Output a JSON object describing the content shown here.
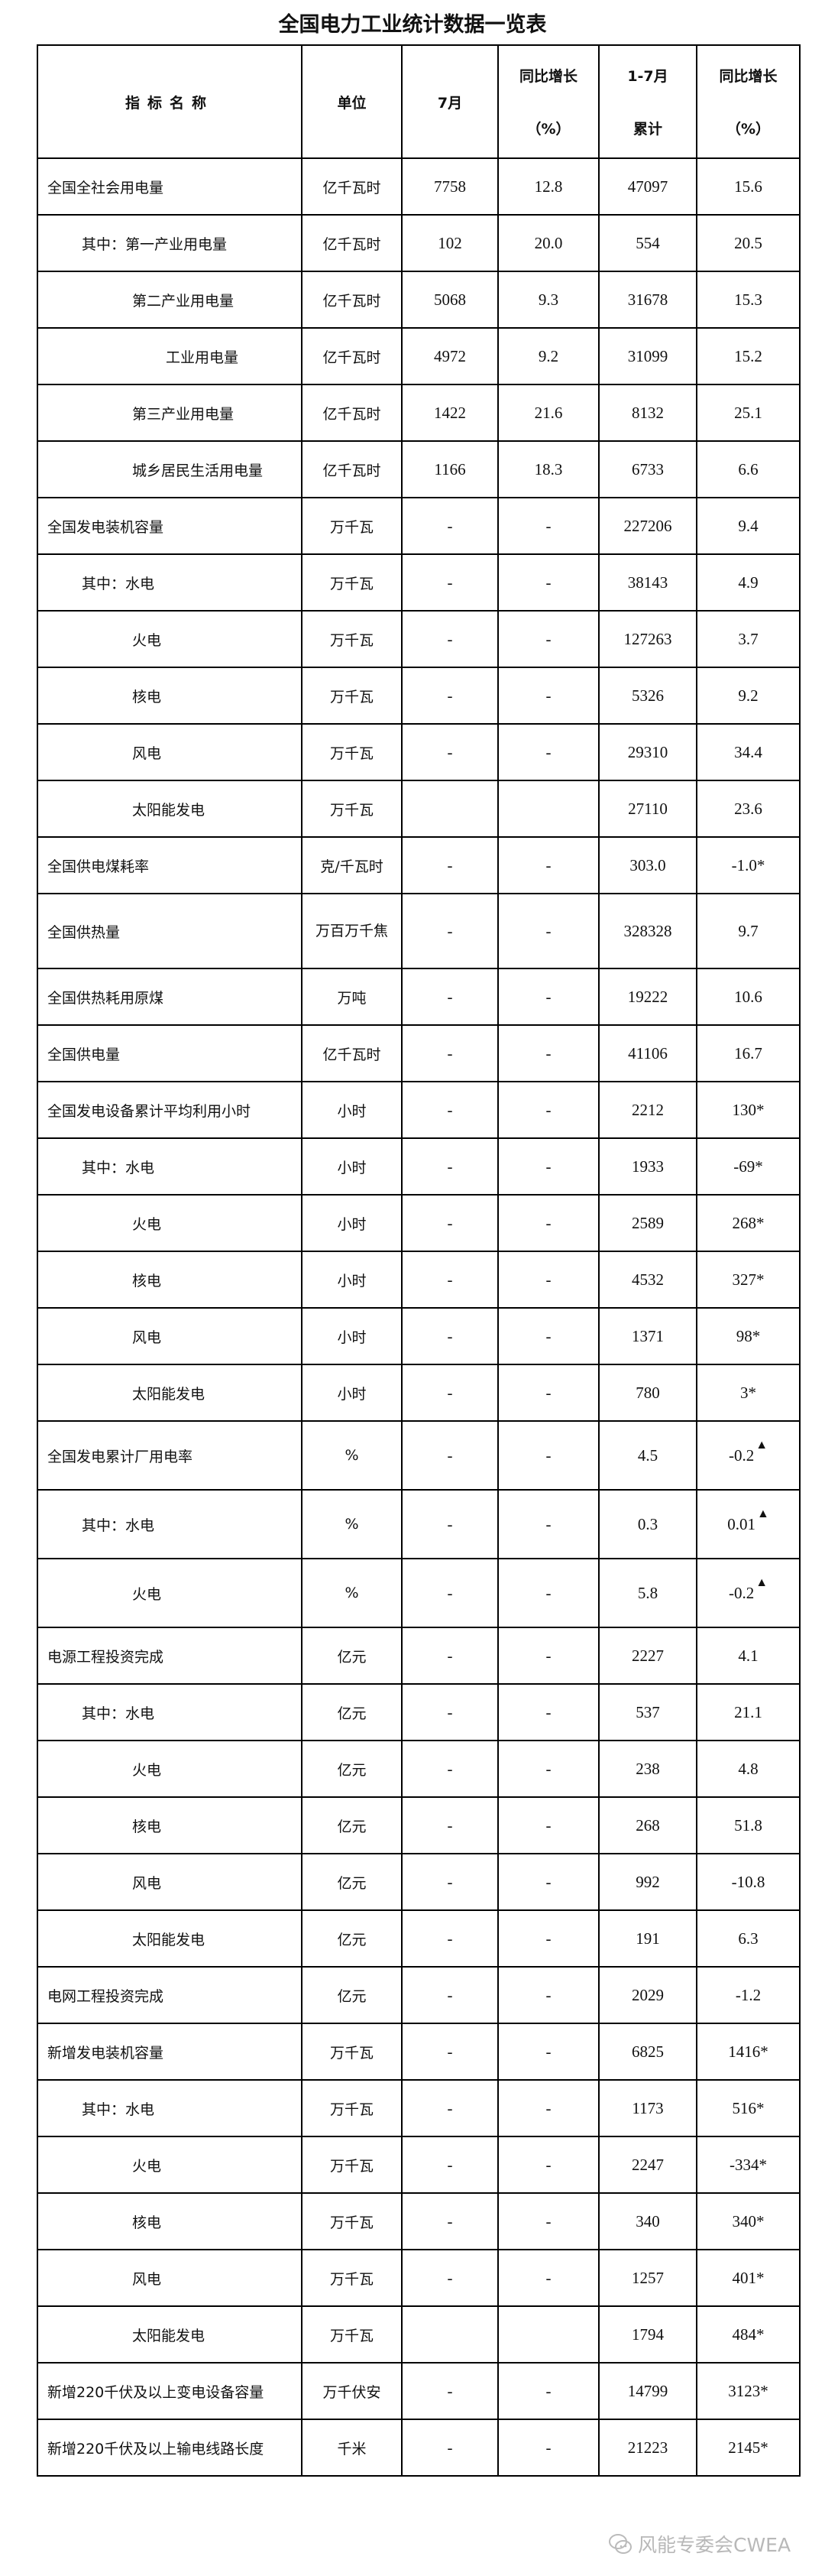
{
  "title": "全国电力工业统计数据一览表",
  "header": {
    "name": "指标名称",
    "unit": "单位",
    "month": "7月",
    "yoy1_top": "同比增长",
    "yoy1_bottom": "（%）",
    "cum_top": "1-7月",
    "cum_bottom": "累计",
    "yoy2_top": "同比增长",
    "yoy2_bottom": "（%）"
  },
  "rows": [
    {
      "name": "全国全社会用电量",
      "level": 0,
      "unit": "亿千瓦时",
      "month": "7758",
      "yoy1": "12.8",
      "cum": "47097",
      "yoy2": "15.6"
    },
    {
      "name": "其中：第一产业用电量",
      "level": 1,
      "unit": "亿千瓦时",
      "month": "102",
      "yoy1": "20.0",
      "cum": "554",
      "yoy2": "20.5"
    },
    {
      "name": "第二产业用电量",
      "level": 2,
      "unit": "亿千瓦时",
      "month": "5068",
      "yoy1": "9.3",
      "cum": "31678",
      "yoy2": "15.3"
    },
    {
      "name": "工业用电量",
      "level": 3,
      "unit": "亿千瓦时",
      "month": "4972",
      "yoy1": "9.2",
      "cum": "31099",
      "yoy2": "15.2"
    },
    {
      "name": "第三产业用电量",
      "level": 2,
      "unit": "亿千瓦时",
      "month": "1422",
      "yoy1": "21.6",
      "cum": "8132",
      "yoy2": "25.1"
    },
    {
      "name": "城乡居民生活用电量",
      "level": 2,
      "unit": "亿千瓦时",
      "month": "1166",
      "yoy1": "18.3",
      "cum": "6733",
      "yoy2": "6.6"
    },
    {
      "name": "全国发电装机容量",
      "level": 0,
      "unit": "万千瓦",
      "month": "-",
      "yoy1": "-",
      "cum": "227206",
      "yoy2": "9.4"
    },
    {
      "name": "其中：水电",
      "level": 1,
      "unit": "万千瓦",
      "month": "-",
      "yoy1": "-",
      "cum": "38143",
      "yoy2": "4.9"
    },
    {
      "name": "火电",
      "level": 2,
      "unit": "万千瓦",
      "month": "-",
      "yoy1": "-",
      "cum": "127263",
      "yoy2": "3.7"
    },
    {
      "name": "核电",
      "level": 2,
      "unit": "万千瓦",
      "month": "-",
      "yoy1": "-",
      "cum": "5326",
      "yoy2": "9.2"
    },
    {
      "name": "风电",
      "level": 2,
      "unit": "万千瓦",
      "month": "-",
      "yoy1": "-",
      "cum": "29310",
      "yoy2": "34.4"
    },
    {
      "name": "太阳能发电",
      "level": 2,
      "unit": "万千瓦",
      "month": "",
      "yoy1": "",
      "cum": "27110",
      "yoy2": "23.6"
    },
    {
      "name": "全国供电煤耗率",
      "level": 0,
      "unit": "克/千瓦时",
      "month": "-",
      "yoy1": "-",
      "cum": "303.0",
      "yoy2": "-1.0*"
    },
    {
      "name": "全国供热量",
      "level": 0,
      "unit": "万百万千焦",
      "month": "-",
      "yoy1": "-",
      "cum": "328328",
      "yoy2": "9.7",
      "style": "heat"
    },
    {
      "name": "全国供热耗用原煤",
      "level": 0,
      "unit": "万吨",
      "month": "-",
      "yoy1": "-",
      "cum": "19222",
      "yoy2": "10.6"
    },
    {
      "name": "全国供电量",
      "level": 0,
      "unit": "亿千瓦时",
      "month": "-",
      "yoy1": "-",
      "cum": "41106",
      "yoy2": "16.7"
    },
    {
      "name": "全国发电设备累计平均利用小时",
      "level": 0,
      "unit": "小时",
      "month": "-",
      "yoy1": "-",
      "cum": "2212",
      "yoy2": "130*"
    },
    {
      "name": "其中：水电",
      "level": 1,
      "unit": "小时",
      "month": "-",
      "yoy1": "-",
      "cum": "1933",
      "yoy2": "-69*"
    },
    {
      "name": "火电",
      "level": 2,
      "unit": "小时",
      "month": "-",
      "yoy1": "-",
      "cum": "2589",
      "yoy2": "268*"
    },
    {
      "name": "核电",
      "level": 2,
      "unit": "小时",
      "month": "-",
      "yoy1": "-",
      "cum": "4532",
      "yoy2": "327*"
    },
    {
      "name": "风电",
      "level": 2,
      "unit": "小时",
      "month": "-",
      "yoy1": "-",
      "cum": "1371",
      "yoy2": "98*"
    },
    {
      "name": "太阳能发电",
      "level": 2,
      "unit": "小时",
      "month": "-",
      "yoy1": "-",
      "cum": "780",
      "yoy2": "3*"
    },
    {
      "name": "全国发电累计厂用电率",
      "level": 0,
      "unit": "%",
      "month": "-",
      "yoy1": "-",
      "cum": "4.5",
      "yoy2": "-0.2",
      "marker": "▲",
      "style": "tall"
    },
    {
      "name": "其中：水电",
      "level": 1,
      "unit": "%",
      "month": "-",
      "yoy1": "-",
      "cum": "0.3",
      "yoy2": "0.01",
      "marker": "▲",
      "style": "tall"
    },
    {
      "name": "火电",
      "level": 2,
      "unit": "%",
      "month": "-",
      "yoy1": "-",
      "cum": "5.8",
      "yoy2": "-0.2",
      "marker": "▲",
      "style": "tall"
    },
    {
      "name": "电源工程投资完成",
      "level": 0,
      "unit": "亿元",
      "month": "-",
      "yoy1": "-",
      "cum": "2227",
      "yoy2": "4.1"
    },
    {
      "name": "其中：水电",
      "level": 1,
      "unit": "亿元",
      "month": "-",
      "yoy1": "-",
      "cum": "537",
      "yoy2": "21.1"
    },
    {
      "name": "火电",
      "level": 2,
      "unit": "亿元",
      "month": "-",
      "yoy1": "-",
      "cum": "238",
      "yoy2": "4.8"
    },
    {
      "name": "核电",
      "level": 2,
      "unit": "亿元",
      "month": "-",
      "yoy1": "-",
      "cum": "268",
      "yoy2": "51.8"
    },
    {
      "name": "风电",
      "level": 2,
      "unit": "亿元",
      "month": "-",
      "yoy1": "-",
      "cum": "992",
      "yoy2": "-10.8"
    },
    {
      "name": "太阳能发电",
      "level": 2,
      "unit": "亿元",
      "month": "-",
      "yoy1": "-",
      "cum": "191",
      "yoy2": "6.3"
    },
    {
      "name": "电网工程投资完成",
      "level": 0,
      "unit": "亿元",
      "month": "-",
      "yoy1": "-",
      "cum": "2029",
      "yoy2": "-1.2"
    },
    {
      "name": "新增发电装机容量",
      "level": 0,
      "unit": "万千瓦",
      "month": "-",
      "yoy1": "-",
      "cum": "6825",
      "yoy2": "1416*"
    },
    {
      "name": "其中：水电",
      "level": 1,
      "unit": "万千瓦",
      "month": "-",
      "yoy1": "-",
      "cum": "1173",
      "yoy2": "516*"
    },
    {
      "name": "火电",
      "level": 2,
      "unit": "万千瓦",
      "month": "-",
      "yoy1": "-",
      "cum": "2247",
      "yoy2": "-334*"
    },
    {
      "name": "核电",
      "level": 2,
      "unit": "万千瓦",
      "month": "-",
      "yoy1": "-",
      "cum": "340",
      "yoy2": "340*"
    },
    {
      "name": "风电",
      "level": 2,
      "unit": "万千瓦",
      "month": "-",
      "yoy1": "-",
      "cum": "1257",
      "yoy2": "401*"
    },
    {
      "name": "太阳能发电",
      "level": 2,
      "unit": "万千瓦",
      "month": "",
      "yoy1": "",
      "cum": "1794",
      "yoy2": "484*"
    },
    {
      "name": "新增220千伏及以上变电设备容量",
      "level": 0,
      "unit": "万千伏安",
      "month": "-",
      "yoy1": "-",
      "cum": "14799",
      "yoy2": "3123*"
    },
    {
      "name": "新增220千伏及以上输电线路长度",
      "level": 0,
      "unit": "千米",
      "month": "-",
      "yoy1": "-",
      "cum": "21223",
      "yoy2": "2145*"
    }
  ],
  "watermark": {
    "text": "风能专委会CWEA",
    "icon": "wechat-icon",
    "color": "#b8b8b8"
  }
}
